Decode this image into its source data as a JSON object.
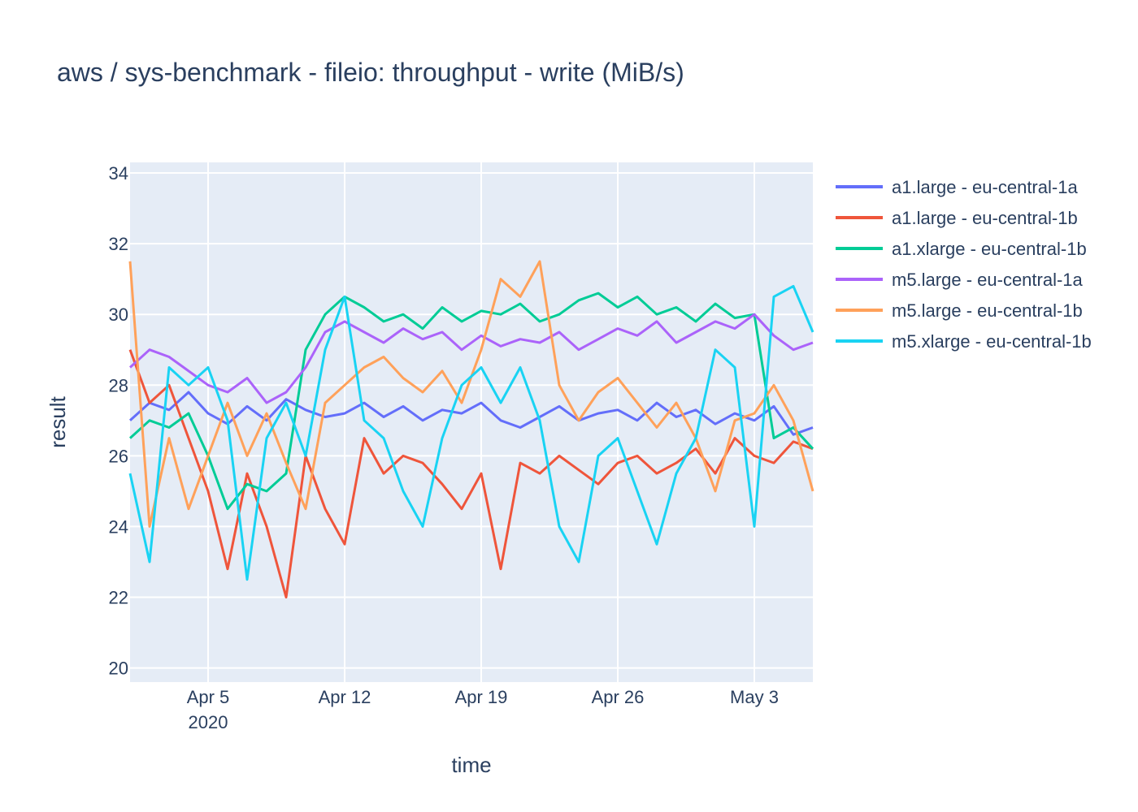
{
  "chart_data": {
    "type": "line",
    "title": "aws / sys-benchmark - fileio: throughput - write (MiB/s)",
    "xlabel": "time",
    "ylabel": "result",
    "xlim": [
      "2020-04-01",
      "2020-05-06"
    ],
    "ylim": [
      19.6,
      34.3
    ],
    "x_ticks": [
      {
        "date": "2020-04-05",
        "label": "Apr 5",
        "sublabel": "2020"
      },
      {
        "date": "2020-04-12",
        "label": "Apr 12",
        "sublabel": ""
      },
      {
        "date": "2020-04-19",
        "label": "Apr 19",
        "sublabel": ""
      },
      {
        "date": "2020-04-26",
        "label": "Apr 26",
        "sublabel": ""
      },
      {
        "date": "2020-05-03",
        "label": "May 3",
        "sublabel": ""
      }
    ],
    "y_ticks": [
      20,
      22,
      24,
      26,
      28,
      30,
      32,
      34
    ],
    "grid": true,
    "legend_position": "right",
    "colors": {
      "plot_bg": "#e5ecf6",
      "grid": "#ffffff",
      "text": "#2a3f5f"
    },
    "x": [
      "2020-04-01",
      "2020-04-02",
      "2020-04-03",
      "2020-04-04",
      "2020-04-05",
      "2020-04-06",
      "2020-04-07",
      "2020-04-08",
      "2020-04-09",
      "2020-04-10",
      "2020-04-11",
      "2020-04-12",
      "2020-04-13",
      "2020-04-14",
      "2020-04-15",
      "2020-04-16",
      "2020-04-17",
      "2020-04-18",
      "2020-04-19",
      "2020-04-20",
      "2020-04-21",
      "2020-04-22",
      "2020-04-23",
      "2020-04-24",
      "2020-04-25",
      "2020-04-26",
      "2020-04-27",
      "2020-04-28",
      "2020-04-29",
      "2020-04-30",
      "2020-05-01",
      "2020-05-02",
      "2020-05-03",
      "2020-05-04",
      "2020-05-05",
      "2020-05-06"
    ],
    "series": [
      {
        "name": "a1.large - eu-central-1a",
        "color": "#636efa",
        "values": [
          27.0,
          27.5,
          27.3,
          27.8,
          27.2,
          26.9,
          27.4,
          27.0,
          27.6,
          27.3,
          27.1,
          27.2,
          27.5,
          27.1,
          27.4,
          27.0,
          27.3,
          27.2,
          27.5,
          27.0,
          26.8,
          27.1,
          27.4,
          27.0,
          27.2,
          27.3,
          27.0,
          27.5,
          27.1,
          27.3,
          26.9,
          27.2,
          27.0,
          27.4,
          26.6,
          26.8
        ]
      },
      {
        "name": "a1.large - eu-central-1b",
        "color": "#ef553b",
        "values": [
          29.0,
          27.5,
          28.0,
          26.5,
          25.0,
          22.8,
          25.5,
          24.0,
          22.0,
          26.0,
          24.5,
          23.5,
          26.5,
          25.5,
          26.0,
          25.8,
          25.2,
          24.5,
          25.5,
          22.8,
          25.8,
          25.5,
          26.0,
          25.6,
          25.2,
          25.8,
          26.0,
          25.5,
          25.8,
          26.2,
          25.5,
          26.5,
          26.0,
          25.8,
          26.4,
          26.2
        ]
      },
      {
        "name": "a1.xlarge - eu-central-1b",
        "color": "#00cc96",
        "values": [
          26.5,
          27.0,
          26.8,
          27.2,
          26.0,
          24.5,
          25.2,
          25.0,
          25.5,
          29.0,
          30.0,
          30.5,
          30.2,
          29.8,
          30.0,
          29.6,
          30.2,
          29.8,
          30.1,
          30.0,
          30.3,
          29.8,
          30.0,
          30.4,
          30.6,
          30.2,
          30.5,
          30.0,
          30.2,
          29.8,
          30.3,
          29.9,
          30.0,
          26.5,
          26.8,
          26.2
        ]
      },
      {
        "name": "m5.large - eu-central-1a",
        "color": "#ab63fa",
        "values": [
          28.5,
          29.0,
          28.8,
          28.4,
          28.0,
          27.8,
          28.2,
          27.5,
          27.8,
          28.5,
          29.5,
          29.8,
          29.5,
          29.2,
          29.6,
          29.3,
          29.5,
          29.0,
          29.4,
          29.1,
          29.3,
          29.2,
          29.5,
          29.0,
          29.3,
          29.6,
          29.4,
          29.8,
          29.2,
          29.5,
          29.8,
          29.6,
          30.0,
          29.4,
          29.0,
          29.2
        ]
      },
      {
        "name": "m5.large - eu-central-1b",
        "color": "#ffa15a",
        "values": [
          31.5,
          24.0,
          26.5,
          24.5,
          26.0,
          27.5,
          26.0,
          27.2,
          25.8,
          24.5,
          27.5,
          28.0,
          28.5,
          28.8,
          28.2,
          27.8,
          28.4,
          27.5,
          29.0,
          31.0,
          30.5,
          31.5,
          28.0,
          27.0,
          27.8,
          28.2,
          27.5,
          26.8,
          27.5,
          26.5,
          25.0,
          27.0,
          27.2,
          28.0,
          27.0,
          25.0
        ]
      },
      {
        "name": "m5.xlarge - eu-central-1b",
        "color": "#19d3f3",
        "values": [
          25.5,
          23.0,
          28.5,
          28.0,
          28.5,
          27.0,
          22.5,
          26.5,
          27.5,
          26.0,
          29.0,
          30.5,
          27.0,
          26.5,
          25.0,
          24.0,
          26.5,
          28.0,
          28.5,
          27.5,
          28.5,
          27.0,
          24.0,
          23.0,
          26.0,
          26.5,
          25.0,
          23.5,
          25.5,
          26.5,
          29.0,
          28.5,
          24.0,
          30.5,
          30.8,
          29.5
        ]
      }
    ]
  }
}
